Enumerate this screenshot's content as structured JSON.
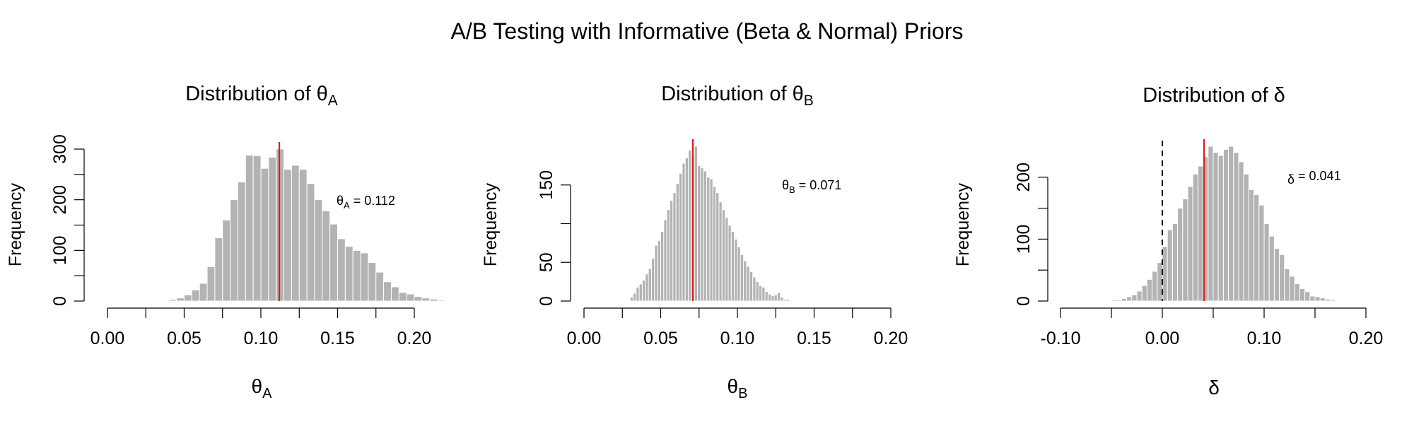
{
  "title": "A/B Testing with Informative (Beta & Normal) Priors",
  "colors": {
    "bar": "#b3b3b3",
    "bar_edge": "#ffffff",
    "mean_line": "#e31a1c",
    "zero_line": "#000000"
  },
  "chart_data": [
    {
      "type": "bar",
      "title": {
        "main": "Distribution of θ",
        "sub": "A"
      },
      "xlabel": {
        "main": "θ",
        "sub": "A"
      },
      "ylabel": "Frequency",
      "annotation": {
        "main": "θ",
        "sub": "A",
        "rest": " = 0.112"
      },
      "xlim": [
        0,
        0.2
      ],
      "ylim": [
        0,
        300
      ],
      "xticks": [
        "0.00",
        "0.05",
        "0.10",
        "0.15",
        "0.20"
      ],
      "yticks": [
        "0",
        "100",
        "200",
        "300"
      ],
      "bin_start": 0.04,
      "bin_width": 0.005,
      "values": [
        3,
        6,
        12,
        22,
        35,
        68,
        125,
        160,
        200,
        235,
        288,
        287,
        262,
        284,
        300,
        260,
        268,
        260,
        232,
        200,
        178,
        152,
        123,
        108,
        100,
        95,
        76,
        57,
        38,
        28,
        17,
        14,
        9,
        6,
        4,
        2
      ],
      "mean": 0.112,
      "zero_line": null
    },
    {
      "type": "bar",
      "title": {
        "main": "Distribution of θ",
        "sub": "B"
      },
      "xlabel": {
        "main": "θ",
        "sub": "B"
      },
      "ylabel": "Frequency",
      "annotation": {
        "main": "θ",
        "sub": "B",
        "rest": " = 0.071"
      },
      "xlim": [
        0,
        0.2
      ],
      "ylim": [
        0,
        200
      ],
      "xticks": [
        "0.00",
        "0.05",
        "0.10",
        "0.15",
        "0.20"
      ],
      "yticks": [
        "0",
        "50",
        "150"
      ],
      "ytick_values": [
        0,
        50,
        150
      ],
      "bin_start": 0.03,
      "bin_width": 0.002,
      "values": [
        5,
        10,
        18,
        22,
        27,
        35,
        42,
        55,
        72,
        78,
        90,
        105,
        118,
        130,
        140,
        152,
        165,
        178,
        185,
        195,
        188,
        200,
        175,
        172,
        168,
        160,
        158,
        148,
        140,
        128,
        118,
        108,
        98,
        90,
        80,
        70,
        60,
        52,
        45,
        38,
        31,
        25,
        20,
        18,
        12,
        9,
        7,
        8,
        11,
        5,
        2,
        2,
        1,
        1
      ],
      "mean": 0.071,
      "zero_line": null
    },
    {
      "type": "bar",
      "title": {
        "main": "Distribution of δ",
        "sub": ""
      },
      "xlabel": {
        "main": "δ",
        "sub": ""
      },
      "ylabel": "Frequency",
      "annotation": {
        "main": "δ",
        "sub": "",
        "rest": " = 0.041"
      },
      "xlim": [
        -0.1,
        0.2
      ],
      "ylim": [
        0,
        250
      ],
      "xticks": [
        "-0.10",
        "0.00",
        "0.10",
        "0.20"
      ],
      "yticks": [
        "0",
        "100",
        "200"
      ],
      "bin_start": -0.05,
      "bin_width": 0.005,
      "values": [
        2,
        2,
        4,
        7,
        10,
        16,
        25,
        35,
        48,
        62,
        88,
        115,
        125,
        150,
        165,
        185,
        205,
        218,
        233,
        250,
        240,
        235,
        245,
        250,
        240,
        225,
        205,
        180,
        172,
        155,
        125,
        105,
        85,
        75,
        52,
        40,
        28,
        20,
        15,
        8,
        7,
        5,
        3,
        2
      ],
      "mean": 0.041,
      "zero_line": 0
    }
  ]
}
